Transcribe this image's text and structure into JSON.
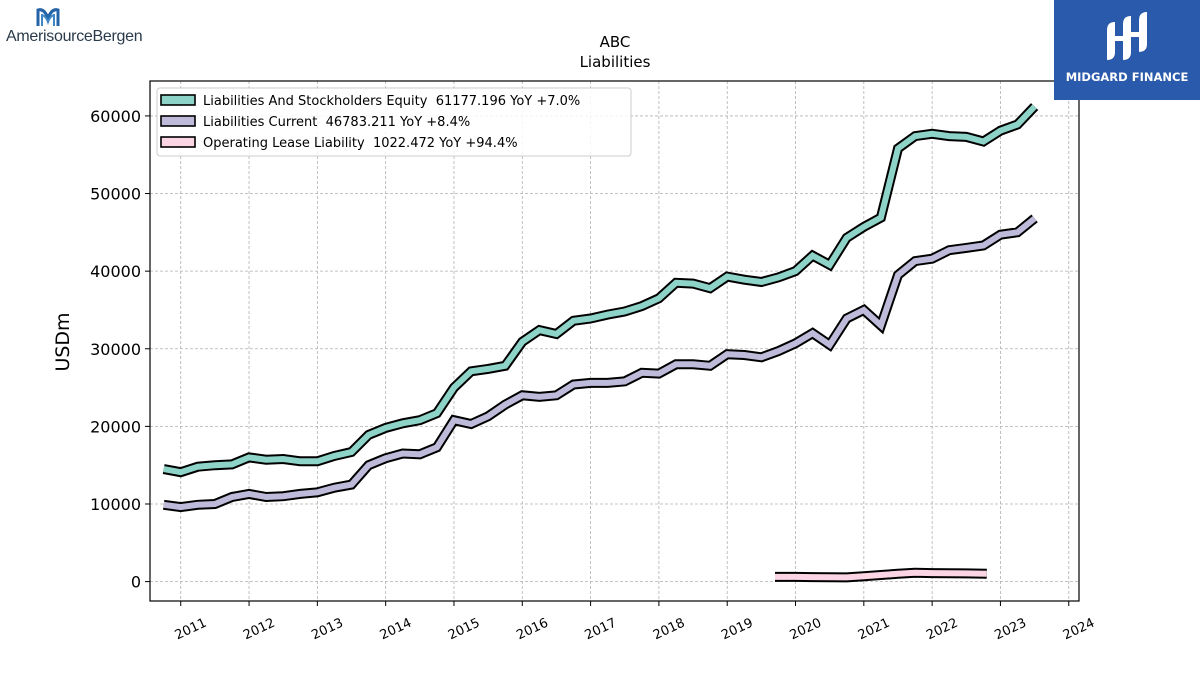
{
  "logos": {
    "left_text": "AmerisourceBergen",
    "right_text": "MIDGARD FINANCE"
  },
  "chart_data": {
    "type": "line",
    "title": "ABC",
    "subtitle": "Liabilities",
    "xlabel": "",
    "ylabel": "USDm",
    "xlim": [
      2010.55,
      2024.15
    ],
    "ylim": [
      -2500,
      64500
    ],
    "xticks": [
      "2011",
      "2012",
      "2013",
      "2014",
      "2015",
      "2016",
      "2017",
      "2018",
      "2019",
      "2020",
      "2021",
      "2022",
      "2023",
      "2024"
    ],
    "yticks": [
      "0",
      "10000",
      "20000",
      "30000",
      "40000",
      "50000",
      "60000"
    ],
    "grid": true,
    "legend_position": "top-left",
    "series": [
      {
        "name": "Liabilities And Stockholders Equity",
        "legend_label": "Liabilities And Stockholders Equity  61177.196 YoY +7.0%",
        "color": "#8dd3c7",
        "x": [
          2010.75,
          2011.0,
          2011.25,
          2011.5,
          2011.75,
          2012.0,
          2012.25,
          2012.5,
          2012.75,
          2013.0,
          2013.25,
          2013.5,
          2013.75,
          2014.0,
          2014.25,
          2014.5,
          2014.75,
          2015.0,
          2015.25,
          2015.5,
          2015.75,
          2016.0,
          2016.25,
          2016.5,
          2016.75,
          2017.0,
          2017.25,
          2017.5,
          2017.75,
          2018.0,
          2018.25,
          2018.5,
          2018.75,
          2019.0,
          2019.25,
          2019.5,
          2019.75,
          2020.0,
          2020.25,
          2020.5,
          2020.75,
          2021.0,
          2021.25,
          2021.5,
          2021.75,
          2022.0,
          2022.25,
          2022.5,
          2022.75,
          2023.0,
          2023.25,
          2023.5
        ],
        "y": [
          14500,
          14100,
          14800,
          15000,
          15100,
          16000,
          15700,
          15800,
          15500,
          15500,
          16200,
          16700,
          18900,
          19800,
          20400,
          20800,
          21700,
          25000,
          27100,
          27400,
          27800,
          30900,
          32400,
          31900,
          33600,
          33900,
          34400,
          34800,
          35500,
          36500,
          38500,
          38400,
          37800,
          39300,
          38900,
          38600,
          39200,
          40000,
          42000,
          40800,
          44300,
          45700,
          46900,
          55800,
          57400,
          57700,
          57400,
          57300,
          56700,
          58100,
          58900,
          61200
        ]
      },
      {
        "name": "Liabilities Current",
        "legend_label": "Liabilities Current  46783.211 YoY +8.4%",
        "color": "#bebada",
        "x": [
          2010.75,
          2011.0,
          2011.25,
          2011.5,
          2011.75,
          2012.0,
          2012.25,
          2012.5,
          2012.75,
          2013.0,
          2013.25,
          2013.5,
          2013.75,
          2014.0,
          2014.25,
          2014.5,
          2014.75,
          2015.0,
          2015.25,
          2015.5,
          2015.75,
          2016.0,
          2016.25,
          2016.5,
          2016.75,
          2017.0,
          2017.25,
          2017.5,
          2017.75,
          2018.0,
          2018.25,
          2018.5,
          2018.75,
          2019.0,
          2019.25,
          2019.5,
          2019.75,
          2020.0,
          2020.25,
          2020.5,
          2020.75,
          2021.0,
          2021.25,
          2021.5,
          2021.75,
          2022.0,
          2022.25,
          2022.5,
          2022.75,
          2023.0,
          2023.25,
          2023.5
        ],
        "y": [
          9900,
          9600,
          9900,
          10000,
          10900,
          11300,
          10900,
          11000,
          11300,
          11500,
          12100,
          12500,
          15000,
          15900,
          16500,
          16400,
          17300,
          20800,
          20300,
          21300,
          22800,
          24000,
          23800,
          24000,
          25400,
          25600,
          25600,
          25800,
          26900,
          26800,
          28000,
          28000,
          27800,
          29300,
          29200,
          28900,
          29700,
          30700,
          32000,
          30500,
          33900,
          35000,
          33000,
          39500,
          41300,
          41600,
          42700,
          43000,
          43300,
          44700,
          45000,
          46800
        ]
      },
      {
        "name": "Operating Lease Liability",
        "legend_label": "Operating Lease Liability  1022.472 YoY +94.4%",
        "color": "#fcd5e5",
        "x": [
          2019.7,
          2020.0,
          2020.25,
          2020.5,
          2020.75,
          2021.0,
          2021.25,
          2021.5,
          2021.75,
          2022.0,
          2022.25,
          2022.5,
          2022.8
        ],
        "y": [
          600,
          600,
          580,
          560,
          540,
          700,
          850,
          1000,
          1150,
          1100,
          1080,
          1050,
          1020
        ]
      }
    ]
  }
}
